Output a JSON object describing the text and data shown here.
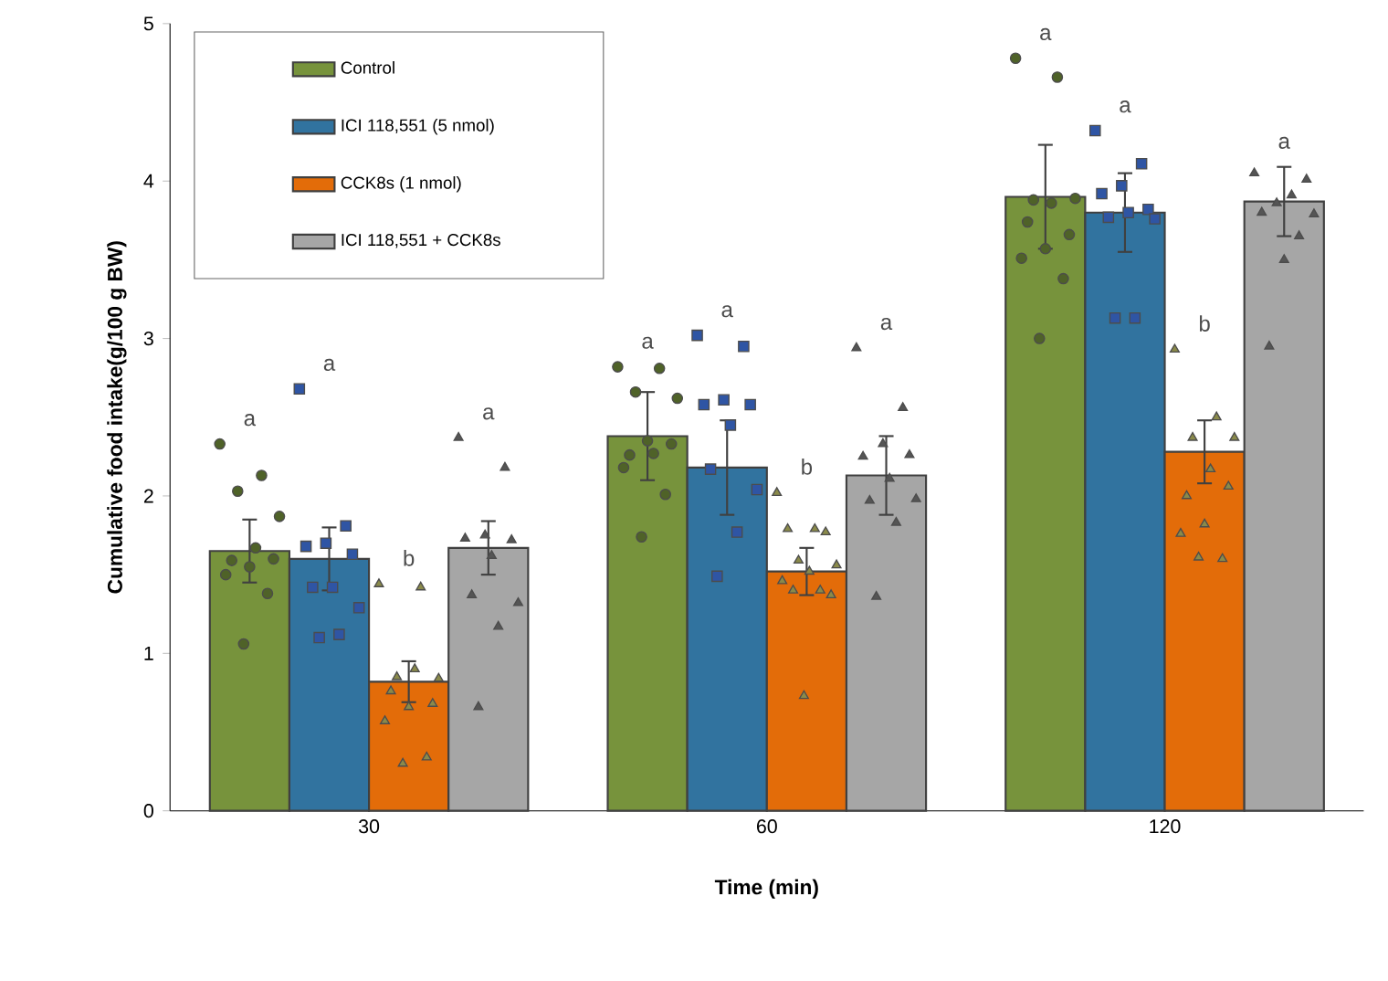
{
  "chart_data": {
    "type": "bar",
    "xlabel": "Time (min)",
    "ylabel": "Cumulative food intake(g/100 g BW)",
    "categories": [
      "30",
      "60",
      "120"
    ],
    "ylim": [
      0,
      5
    ],
    "yticks": [
      0,
      1,
      2,
      3,
      4,
      5
    ],
    "legend": "top left",
    "series": [
      {
        "name": "Control",
        "color": "#77933c",
        "values": [
          1.65,
          2.38,
          3.9
        ],
        "errors": [
          0.2,
          0.28,
          0.33
        ]
      },
      {
        "name": "ICI 118,551 (5 nmol)",
        "color": "#31739f",
        "values": [
          1.6,
          2.18,
          3.8
        ],
        "errors": [
          0.2,
          0.3,
          0.25
        ]
      },
      {
        "name": "CCK8s (1 nmol)",
        "color": "#e36c09",
        "values": [
          0.82,
          1.52,
          2.28
        ],
        "errors": [
          0.13,
          0.15,
          0.2
        ]
      },
      {
        "name": "ICI 118,551 + CCK8s",
        "color": "#a6a6a6",
        "values": [
          1.67,
          2.13,
          3.87
        ],
        "errors": [
          0.17,
          0.25,
          0.22
        ]
      },
      {
        "type": "scatter",
        "marker": "circle",
        "color": "#4f6228",
        "x": [
          "30",
          "30",
          "30",
          "30",
          "30",
          "30",
          "30",
          "30",
          "30",
          "30",
          "30",
          "60",
          "60",
          "60",
          "60",
          "60",
          "60",
          "60",
          "60",
          "60",
          "60",
          "60",
          "120",
          "120",
          "120",
          "120",
          "120",
          "120",
          "120",
          "120",
          "120",
          "120",
          "120"
        ],
        "values": [
          2.33,
          2.13,
          2.03,
          1.87,
          1.67,
          1.59,
          1.6,
          1.55,
          1.5,
          1.38,
          1.06,
          2.82,
          2.81,
          2.66,
          2.62,
          2.27,
          2.26,
          2.33,
          2.35,
          2.18,
          2.01,
          1.74,
          4.78,
          4.66,
          3.88,
          3.89,
          3.86,
          3.74,
          3.66,
          3.57,
          3.51,
          3.38,
          3.0
        ]
      },
      {
        "type": "scatter",
        "marker": "square",
        "color": "#2f55a4",
        "x": [
          "30",
          "30",
          "30",
          "30",
          "30",
          "30",
          "30",
          "30",
          "30",
          "30",
          "60",
          "60",
          "60",
          "60",
          "60",
          "60",
          "60",
          "60",
          "60",
          "60",
          "120",
          "120",
          "120",
          "120",
          "120",
          "120",
          "120",
          "120",
          "120",
          "120"
        ],
        "values": [
          2.68,
          1.81,
          1.7,
          1.68,
          1.63,
          1.42,
          1.42,
          1.29,
          1.12,
          1.1,
          3.02,
          2.95,
          2.61,
          2.58,
          2.58,
          2.45,
          2.17,
          2.04,
          1.77,
          1.49,
          4.32,
          4.11,
          3.97,
          3.92,
          3.82,
          3.8,
          3.77,
          3.76,
          3.13,
          3.13
        ]
      },
      {
        "type": "scatter",
        "marker": "triangle",
        "color": "#8a8a4a",
        "x": [
          "30",
          "30",
          "30",
          "30",
          "30",
          "30",
          "30",
          "30",
          "30",
          "30",
          "30",
          "60",
          "60",
          "60",
          "60",
          "60",
          "60",
          "60",
          "60",
          "60",
          "60",
          "60",
          "60",
          "120",
          "120",
          "120",
          "120",
          "120",
          "120",
          "120",
          "120",
          "120",
          "120",
          "120"
        ],
        "values": [
          1.44,
          1.42,
          0.85,
          0.84,
          0.9,
          0.76,
          0.68,
          0.66,
          0.57,
          0.34,
          0.3,
          2.02,
          1.79,
          1.79,
          1.77,
          1.59,
          1.56,
          1.52,
          1.46,
          1.4,
          1.4,
          1.37,
          0.73,
          2.93,
          2.5,
          2.37,
          2.37,
          2.17,
          2.0,
          2.06,
          1.82,
          1.76,
          1.6,
          1.61
        ]
      },
      {
        "type": "scatter",
        "marker": "triangle",
        "color": "#555555",
        "x": [
          "30",
          "30",
          "30",
          "30",
          "30",
          "30",
          "30",
          "30",
          "30",
          "30",
          "60",
          "60",
          "60",
          "60",
          "60",
          "60",
          "60",
          "60",
          "60",
          "60",
          "120",
          "120",
          "120",
          "120",
          "120",
          "120",
          "120",
          "120",
          "120"
        ],
        "values": [
          2.37,
          2.18,
          1.75,
          1.73,
          1.72,
          1.62,
          1.37,
          1.32,
          1.17,
          0.66,
          2.94,
          2.56,
          2.33,
          2.25,
          2.26,
          2.11,
          1.97,
          1.98,
          1.83,
          1.36,
          4.05,
          4.01,
          3.91,
          3.86,
          3.8,
          3.79,
          3.65,
          3.5,
          2.95
        ]
      }
    ],
    "annotations": [
      "a",
      "a",
      "b",
      "a",
      "a",
      "a",
      "b",
      "a",
      "a",
      "a",
      "b",
      "a"
    ]
  }
}
